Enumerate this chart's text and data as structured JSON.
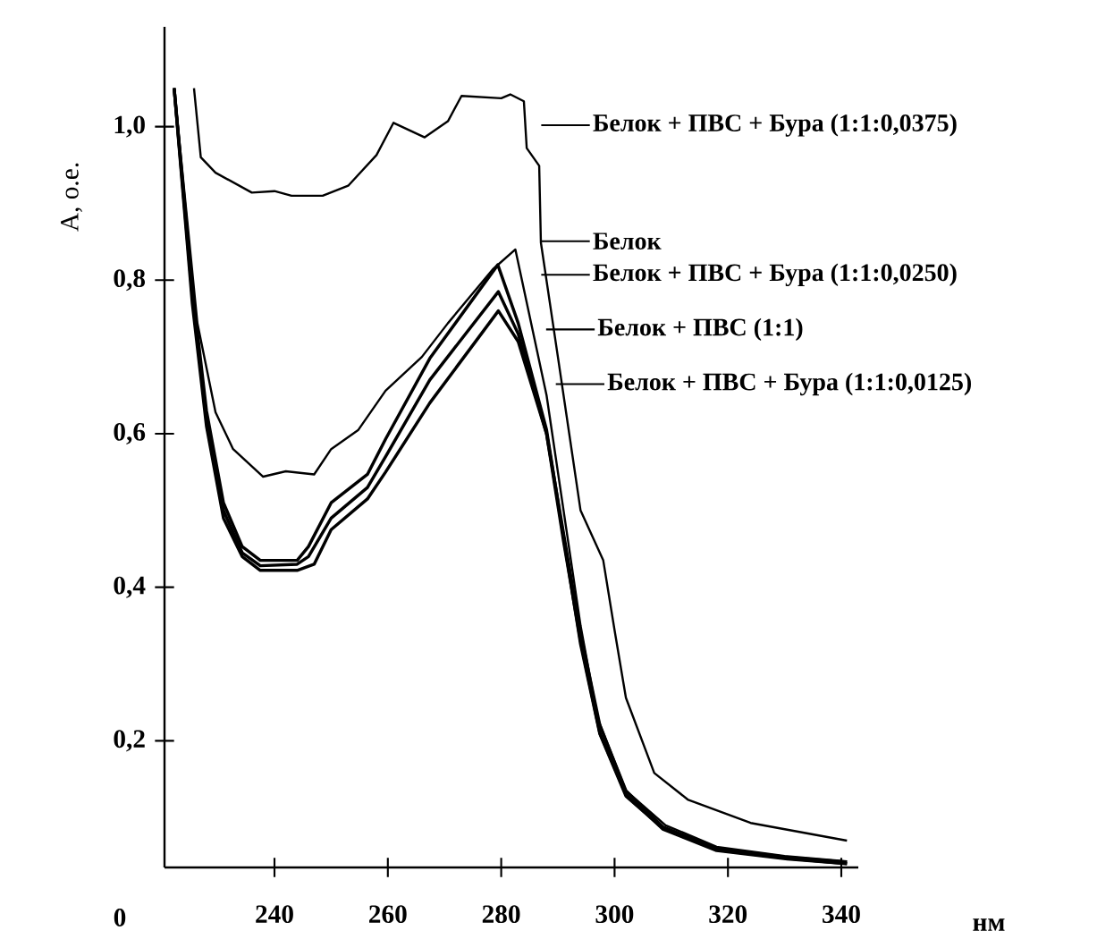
{
  "chart_data": {
    "type": "line",
    "xlabel": "нм",
    "ylabel": "A, о.е.",
    "annotations": [
      "0"
    ],
    "legend": "top right",
    "xlim": [
      220.6,
      343
    ],
    "ylim": [
      0.035,
      1.13
    ],
    "xticks": [
      240,
      260,
      280,
      300,
      320,
      340
    ],
    "yticks": [
      {
        "value": 0.2,
        "label": "0,2"
      },
      {
        "value": 0.4,
        "label": "0,4"
      },
      {
        "value": 0.6,
        "label": "0,6"
      },
      {
        "value": 0.8,
        "label": "0,8"
      },
      {
        "value": 1.0,
        "label": "1,0"
      }
    ],
    "series": [
      {
        "name": "Белок + ПВС + Бура (1:1:0,0375)",
        "color": "#000000",
        "x": [
          225.8,
          227,
          229.6,
          236,
          240,
          243,
          248.5,
          253,
          258,
          261,
          266.5,
          270.6,
          273,
          280,
          281.6,
          284,
          284.5,
          286.7,
          287,
          290,
          292,
          294,
          298,
          300,
          302,
          307,
          313,
          324,
          341
        ],
        "values": [
          1.05,
          0.96,
          0.94,
          0.914,
          0.916,
          0.91,
          0.91,
          0.923,
          0.963,
          1.005,
          0.986,
          1.007,
          1.04,
          1.037,
          1.042,
          1.033,
          0.972,
          0.949,
          0.849,
          0.7,
          0.6,
          0.5,
          0.435,
          0.344,
          0.256,
          0.158,
          0.123,
          0.093,
          0.07
        ]
      },
      {
        "name": "Белок",
        "color": "#000000",
        "x": [
          222.3,
          226.4,
          229.6,
          232.7,
          238,
          242,
          247,
          250,
          254.8,
          259.6,
          266,
          270.6,
          278.5,
          282.5,
          288,
          291,
          294,
          297,
          302,
          309,
          318,
          330,
          341
        ],
        "values": [
          1.05,
          0.744,
          0.628,
          0.58,
          0.544,
          0.551,
          0.547,
          0.58,
          0.605,
          0.656,
          0.7,
          0.744,
          0.814,
          0.84,
          0.65,
          0.5,
          0.35,
          0.23,
          0.135,
          0.09,
          0.062,
          0.05,
          0.043
        ]
      },
      {
        "name": "Белок + ПВС + Бура (1:1:0,0250)",
        "color": "#000000",
        "x": [
          222.3,
          225.5,
          228,
          231,
          234.3,
          237.5,
          244,
          246,
          250,
          256.4,
          259.6,
          267.4,
          279.4,
          283,
          288,
          291,
          294,
          297.4,
          302,
          308.5,
          318,
          330.5,
          341
        ],
        "values": [
          1.05,
          0.79,
          0.63,
          0.51,
          0.453,
          0.435,
          0.435,
          0.453,
          0.51,
          0.547,
          0.593,
          0.698,
          0.82,
          0.744,
          0.605,
          0.465,
          0.326,
          0.209,
          0.128,
          0.086,
          0.058,
          0.047,
          0.04
        ]
      },
      {
        "name": "Белок + ПВС (1:1)",
        "color": "#000000",
        "x": [
          222.3,
          225.5,
          228,
          231,
          234.3,
          237.5,
          244,
          246,
          250,
          256.4,
          259.6,
          267.4,
          279.5,
          283,
          288,
          291,
          294,
          297.4,
          302,
          308.5,
          318,
          330.5,
          341
        ],
        "values": [
          1.05,
          0.78,
          0.62,
          0.5,
          0.445,
          0.428,
          0.43,
          0.44,
          0.49,
          0.53,
          0.57,
          0.67,
          0.785,
          0.73,
          0.6,
          0.46,
          0.33,
          0.21,
          0.13,
          0.085,
          0.057,
          0.046,
          0.04
        ]
      },
      {
        "name": "Белок + ПВС + Бура (1:1:0,0125)",
        "color": "#000000",
        "x": [
          222.3,
          225.5,
          228,
          231,
          234.3,
          237.5,
          244,
          247,
          250,
          256.4,
          259.6,
          267.4,
          279.5,
          283,
          288,
          291,
          294,
          297.4,
          302,
          308.5,
          318,
          330.5,
          341
        ],
        "values": [
          1.05,
          0.77,
          0.61,
          0.49,
          0.44,
          0.422,
          0.422,
          0.43,
          0.475,
          0.515,
          0.55,
          0.64,
          0.76,
          0.72,
          0.6,
          0.47,
          0.34,
          0.22,
          0.135,
          0.088,
          0.06,
          0.048,
          0.042
        ]
      }
    ]
  }
}
